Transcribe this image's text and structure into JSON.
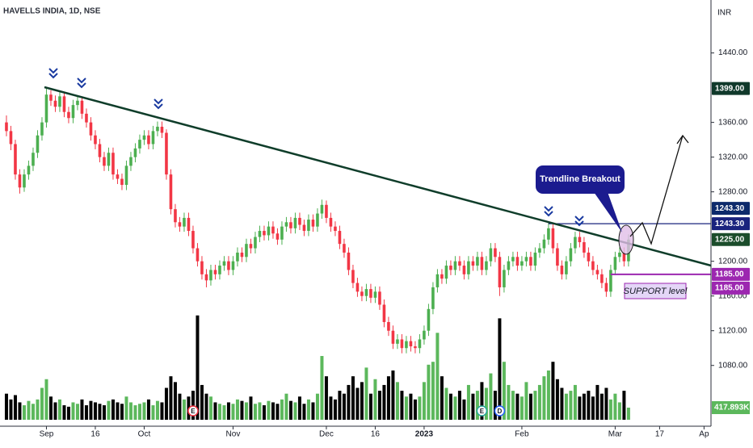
{
  "chart_data": {
    "type": "candlestick",
    "title": "HAVELLS INDIA, 1D, NSE",
    "currency": "INR",
    "x": [
      0,
      1,
      2,
      3,
      4,
      5,
      6,
      7,
      8,
      9,
      10,
      11,
      12,
      13,
      14,
      15,
      16,
      17,
      18,
      19,
      20,
      21,
      22,
      23,
      24,
      25,
      26,
      27,
      28,
      29,
      30,
      31,
      32,
      33,
      34,
      35,
      36,
      37,
      38,
      39,
      40,
      41,
      42,
      43,
      44,
      45,
      46,
      47,
      48,
      49,
      50,
      51,
      52,
      53,
      54,
      55,
      56,
      57,
      58,
      59,
      60,
      61,
      62,
      63,
      64,
      65,
      66,
      67,
      68,
      69,
      70,
      71,
      72,
      73,
      74,
      75,
      76,
      77,
      78,
      79,
      80,
      81,
      82,
      83,
      84,
      85,
      86,
      87,
      88,
      89,
      90,
      91,
      92,
      93,
      94,
      95,
      96,
      97,
      98,
      99,
      100,
      101,
      102,
      103,
      104,
      105,
      106,
      107,
      108,
      109,
      110,
      111,
      112,
      113,
      114,
      115,
      116,
      117,
      118,
      119,
      120,
      121,
      122,
      123,
      124,
      125,
      126,
      127,
      128,
      129,
      130,
      131,
      132,
      133,
      134,
      135,
      136,
      137,
      138,
      139,
      140
    ],
    "ohlc": [
      [
        1360,
        1368,
        1344,
        1350
      ],
      [
        1350,
        1356,
        1328,
        1335
      ],
      [
        1335,
        1340,
        1294,
        1300
      ],
      [
        1300,
        1306,
        1278,
        1285
      ],
      [
        1285,
        1306,
        1280,
        1300
      ],
      [
        1300,
        1316,
        1294,
        1310
      ],
      [
        1310,
        1331,
        1304,
        1325
      ],
      [
        1325,
        1351,
        1319,
        1345
      ],
      [
        1345,
        1366,
        1339,
        1360
      ],
      [
        1360,
        1399,
        1354,
        1392
      ],
      [
        1392,
        1397,
        1379,
        1385
      ],
      [
        1385,
        1391,
        1372,
        1378
      ],
      [
        1378,
        1396,
        1372,
        1390
      ],
      [
        1390,
        1395,
        1366,
        1372
      ],
      [
        1372,
        1378,
        1359,
        1365
      ],
      [
        1365,
        1386,
        1359,
        1380
      ],
      [
        1380,
        1391,
        1374,
        1385
      ],
      [
        1385,
        1390,
        1364,
        1370
      ],
      [
        1370,
        1376,
        1354,
        1360
      ],
      [
        1360,
        1366,
        1339,
        1345
      ],
      [
        1345,
        1351,
        1329,
        1335
      ],
      [
        1335,
        1341,
        1314,
        1320
      ],
      [
        1320,
        1326,
        1304,
        1310
      ],
      [
        1310,
        1331,
        1304,
        1325
      ],
      [
        1325,
        1331,
        1294,
        1300
      ],
      [
        1300,
        1306,
        1289,
        1295
      ],
      [
        1295,
        1301,
        1282,
        1288
      ],
      [
        1288,
        1316,
        1282,
        1310
      ],
      [
        1310,
        1326,
        1304,
        1320
      ],
      [
        1320,
        1336,
        1314,
        1330
      ],
      [
        1330,
        1346,
        1324,
        1340
      ],
      [
        1340,
        1351,
        1334,
        1345
      ],
      [
        1345,
        1351,
        1329,
        1335
      ],
      [
        1335,
        1356,
        1329,
        1350
      ],
      [
        1350,
        1361,
        1344,
        1355
      ],
      [
        1355,
        1361,
        1342,
        1348
      ],
      [
        1348,
        1352,
        1294,
        1300
      ],
      [
        1300,
        1306,
        1254,
        1260
      ],
      [
        1260,
        1266,
        1239,
        1245
      ],
      [
        1245,
        1251,
        1234,
        1240
      ],
      [
        1240,
        1256,
        1234,
        1250
      ],
      [
        1250,
        1256,
        1229,
        1235
      ],
      [
        1235,
        1241,
        1209,
        1215
      ],
      [
        1215,
        1221,
        1194,
        1200
      ],
      [
        1200,
        1206,
        1179,
        1185
      ],
      [
        1185,
        1191,
        1170,
        1178
      ],
      [
        1178,
        1196,
        1172,
        1190
      ],
      [
        1190,
        1196,
        1179,
        1185
      ],
      [
        1185,
        1201,
        1179,
        1195
      ],
      [
        1195,
        1206,
        1189,
        1200
      ],
      [
        1200,
        1206,
        1184,
        1190
      ],
      [
        1190,
        1206,
        1184,
        1200
      ],
      [
        1200,
        1216,
        1194,
        1210
      ],
      [
        1210,
        1216,
        1199,
        1205
      ],
      [
        1205,
        1226,
        1199,
        1220
      ],
      [
        1220,
        1226,
        1209,
        1215
      ],
      [
        1215,
        1234,
        1209,
        1228
      ],
      [
        1228,
        1241,
        1222,
        1235
      ],
      [
        1235,
        1241,
        1224,
        1230
      ],
      [
        1230,
        1246,
        1224,
        1240
      ],
      [
        1240,
        1246,
        1226,
        1232
      ],
      [
        1232,
        1238,
        1219,
        1225
      ],
      [
        1225,
        1246,
        1219,
        1240
      ],
      [
        1240,
        1251,
        1234,
        1245
      ],
      [
        1245,
        1251,
        1232,
        1238
      ],
      [
        1238,
        1256,
        1232,
        1250
      ],
      [
        1250,
        1256,
        1236,
        1242
      ],
      [
        1242,
        1248,
        1229,
        1235
      ],
      [
        1235,
        1254,
        1229,
        1248
      ],
      [
        1248,
        1254,
        1234,
        1240
      ],
      [
        1240,
        1261,
        1234,
        1255
      ],
      [
        1255,
        1271,
        1249,
        1265
      ],
      [
        1265,
        1270,
        1244,
        1250
      ],
      [
        1250,
        1256,
        1234,
        1240
      ],
      [
        1240,
        1246,
        1229,
        1235
      ],
      [
        1235,
        1241,
        1214,
        1220
      ],
      [
        1220,
        1226,
        1204,
        1210
      ],
      [
        1210,
        1216,
        1184,
        1190
      ],
      [
        1190,
        1196,
        1169,
        1175
      ],
      [
        1175,
        1181,
        1159,
        1165
      ],
      [
        1165,
        1171,
        1154,
        1160
      ],
      [
        1160,
        1174,
        1154,
        1168
      ],
      [
        1168,
        1174,
        1152,
        1158
      ],
      [
        1158,
        1171,
        1152,
        1165
      ],
      [
        1165,
        1171,
        1144,
        1150
      ],
      [
        1150,
        1156,
        1124,
        1130
      ],
      [
        1130,
        1136,
        1114,
        1120
      ],
      [
        1120,
        1126,
        1099,
        1105
      ],
      [
        1105,
        1116,
        1099,
        1110
      ],
      [
        1110,
        1116,
        1094,
        1100
      ],
      [
        1100,
        1114,
        1094,
        1108
      ],
      [
        1108,
        1114,
        1096,
        1102
      ],
      [
        1102,
        1108,
        1094,
        1100
      ],
      [
        1100,
        1116,
        1094,
        1110
      ],
      [
        1110,
        1126,
        1104,
        1120
      ],
      [
        1120,
        1151,
        1114,
        1145
      ],
      [
        1145,
        1176,
        1139,
        1170
      ],
      [
        1170,
        1191,
        1164,
        1185
      ],
      [
        1185,
        1191,
        1174,
        1180
      ],
      [
        1180,
        1201,
        1174,
        1195
      ],
      [
        1195,
        1201,
        1184,
        1190
      ],
      [
        1190,
        1206,
        1184,
        1200
      ],
      [
        1200,
        1206,
        1189,
        1195
      ],
      [
        1195,
        1201,
        1179,
        1185
      ],
      [
        1185,
        1206,
        1179,
        1200
      ],
      [
        1200,
        1206,
        1189,
        1195
      ],
      [
        1195,
        1211,
        1189,
        1205
      ],
      [
        1205,
        1211,
        1184,
        1190
      ],
      [
        1190,
        1206,
        1184,
        1200
      ],
      [
        1200,
        1221,
        1194,
        1215
      ],
      [
        1215,
        1221,
        1199,
        1205
      ],
      [
        1205,
        1211,
        1160,
        1170
      ],
      [
        1170,
        1196,
        1164,
        1190
      ],
      [
        1190,
        1206,
        1184,
        1200
      ],
      [
        1200,
        1211,
        1194,
        1205
      ],
      [
        1205,
        1211,
        1189,
        1195
      ],
      [
        1195,
        1206,
        1189,
        1200
      ],
      [
        1200,
        1211,
        1194,
        1205
      ],
      [
        1205,
        1211,
        1189,
        1195
      ],
      [
        1195,
        1216,
        1189,
        1210
      ],
      [
        1210,
        1221,
        1204,
        1215
      ],
      [
        1215,
        1231,
        1209,
        1225
      ],
      [
        1225,
        1244,
        1219,
        1238
      ],
      [
        1238,
        1244,
        1209,
        1215
      ],
      [
        1215,
        1221,
        1189,
        1195
      ],
      [
        1195,
        1201,
        1179,
        1185
      ],
      [
        1185,
        1206,
        1179,
        1200
      ],
      [
        1200,
        1221,
        1194,
        1215
      ],
      [
        1215,
        1234,
        1209,
        1228
      ],
      [
        1228,
        1234,
        1216,
        1222
      ],
      [
        1222,
        1228,
        1204,
        1210
      ],
      [
        1210,
        1216,
        1194,
        1200
      ],
      [
        1200,
        1206,
        1184,
        1190
      ],
      [
        1190,
        1196,
        1179,
        1185
      ],
      [
        1185,
        1191,
        1169,
        1175
      ],
      [
        1175,
        1181,
        1159,
        1165
      ],
      [
        1165,
        1196,
        1159,
        1190
      ],
      [
        1190,
        1211,
        1184,
        1205
      ],
      [
        1205,
        1216,
        1199,
        1210
      ],
      [
        1210,
        1216,
        1194,
        1200
      ],
      [
        1200,
        1231,
        1194,
        1225
      ]
    ],
    "volume": [
      900000,
      700000,
      850000,
      600000,
      500000,
      650000,
      550000,
      700000,
      1100000,
      1400000,
      800000,
      600000,
      700000,
      500000,
      450000,
      600000,
      550000,
      700000,
      500000,
      650000,
      600000,
      550000,
      500000,
      650000,
      700000,
      600000,
      550000,
      800000,
      600000,
      500000,
      550000,
      600000,
      700000,
      500000,
      650000,
      600000,
      1100000,
      1500000,
      1300000,
      900000,
      700000,
      800000,
      1000000,
      3600000,
      1200000,
      900000,
      800000,
      600000,
      550000,
      500000,
      600000,
      550000,
      700000,
      650000,
      600000,
      800000,
      550000,
      600000,
      500000,
      650000,
      600000,
      550000,
      700000,
      900000,
      650000,
      600000,
      800000,
      550000,
      700000,
      600000,
      900000,
      2200000,
      1500000,
      800000,
      700000,
      1000000,
      900000,
      1200000,
      1500000,
      1100000,
      1300000,
      1800000,
      900000,
      1400000,
      1000000,
      1200000,
      1500000,
      1700000,
      1300000,
      1000000,
      800000,
      900000,
      700000,
      800000,
      1300000,
      1900000,
      2000000,
      3000000,
      1500000,
      1100000,
      900000,
      800000,
      1000000,
      700000,
      1200000,
      900000,
      1000000,
      1300000,
      1100000,
      1600000,
      1000000,
      3500000,
      2000000,
      1200000,
      1000000,
      900000,
      800000,
      1300000,
      900000,
      1000000,
      1200000,
      1500000,
      1700000,
      2000000,
      1400000,
      1100000,
      900000,
      1000000,
      1200000,
      800000,
      900000,
      1000000,
      800000,
      1200000,
      900000,
      1100000,
      700000,
      900000,
      600000,
      1000000,
      417893
    ],
    "volume_label": "417.893K",
    "volume_lim": [
      0,
      3900000
    ],
    "colors": {
      "up": "#4caf50",
      "down": "#f23645",
      "volume_up": "#5cb85c",
      "volume_down": "#000000"
    },
    "xlim": [
      -1.45,
      158.2
    ],
    "xticks": [
      {
        "value": 9,
        "label": "Sep"
      },
      {
        "value": 20,
        "label": "16"
      },
      {
        "value": 31,
        "label": "Oct"
      },
      {
        "value": 51,
        "label": "Nov"
      },
      {
        "value": 72,
        "label": "Dec"
      },
      {
        "value": 83,
        "label": "16"
      },
      {
        "value": 94,
        "label": "2023"
      },
      {
        "value": 116,
        "label": "Feb"
      },
      {
        "value": 137,
        "label": "Mar"
      },
      {
        "value": 147,
        "label": "17"
      },
      {
        "value": 157,
        "label": "Ap"
      }
    ],
    "ylim": [
      1010,
      1501
    ],
    "yticks": [
      {
        "value": 1440,
        "label": "1440.00"
      },
      {
        "value": 1360,
        "label": "1360.00"
      },
      {
        "value": 1320,
        "label": "1320.00"
      },
      {
        "value": 1280,
        "label": "1280.00"
      },
      {
        "value": 1200,
        "label": "1200.00"
      },
      {
        "value": 1160,
        "label": "1160.00"
      },
      {
        "value": 1120,
        "label": "1120.00"
      },
      {
        "value": 1080,
        "label": "1080.00"
      }
    ],
    "price_tags": [
      {
        "value": 1399,
        "label": "1399.00",
        "color": "#10392b"
      },
      {
        "value": 1243.3,
        "label": "1243.30",
        "color": "#0d2a6b"
      },
      {
        "value": 1243.3,
        "label": "1243.30",
        "color": "#1a237e"
      },
      {
        "value": 1225,
        "label": "1225.00",
        "color": "#1b4d2b"
      },
      {
        "value": 1185,
        "label": "1185.00",
        "color": "#9c27b0"
      },
      {
        "value": 1185,
        "label": "1185.00",
        "color": "#9c27b0"
      }
    ],
    "levels": [
      {
        "value": 1243.3,
        "color": "#1a237e"
      },
      {
        "value": 1185,
        "color": "#9c27b0"
      }
    ],
    "annotations": {
      "breakout": "Trendline Breakout",
      "support": "SUPPORT level"
    },
    "events": [
      {
        "label": "E",
        "x": 42
      },
      {
        "label": "E",
        "x": 107
      },
      {
        "label": "D",
        "x": 111
      }
    ]
  }
}
